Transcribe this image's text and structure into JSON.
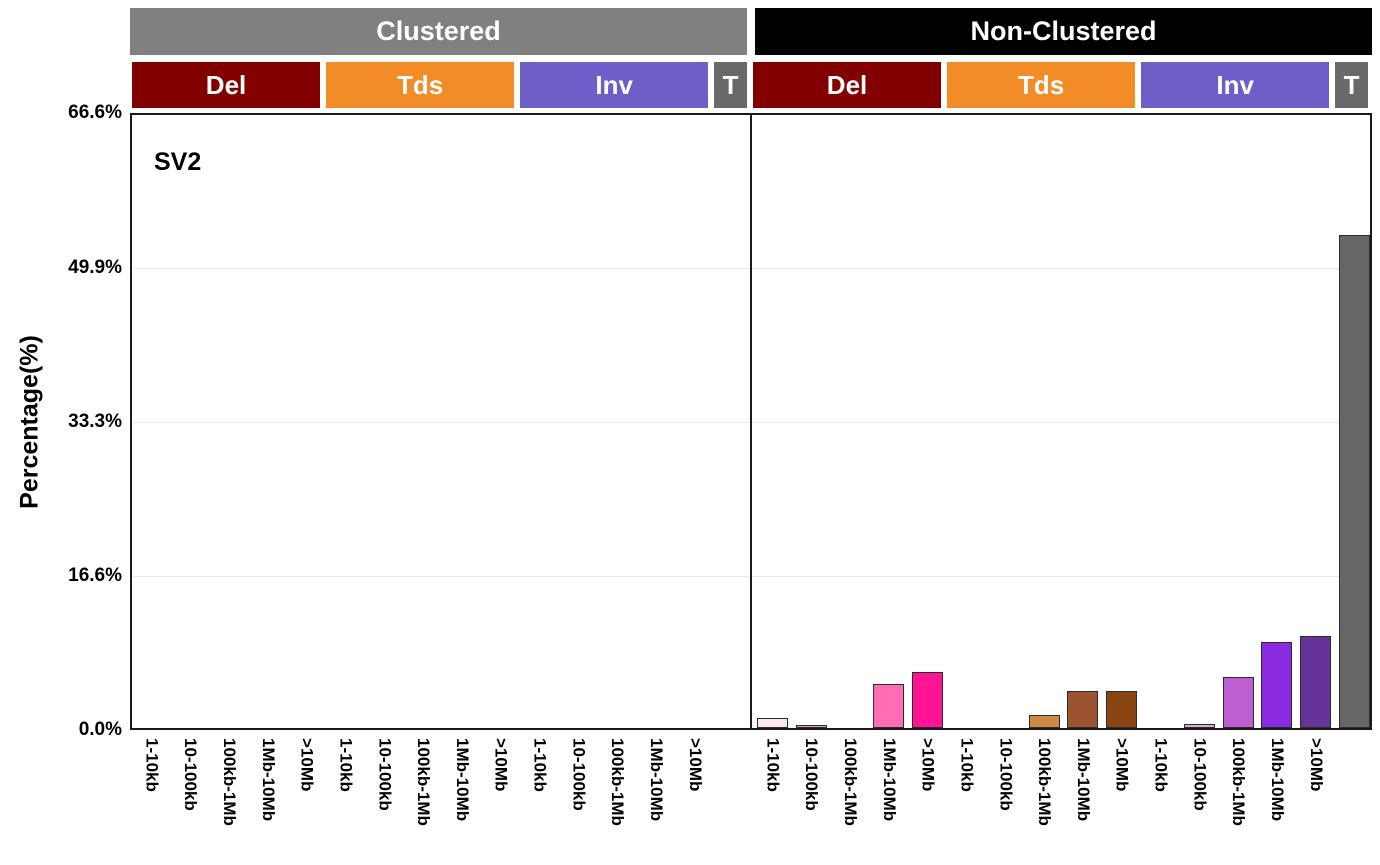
{
  "title": "SV2",
  "header": {
    "groups": [
      {
        "label": "Clustered",
        "bg": "#808080",
        "fg": "#ffffff"
      },
      {
        "label": "Non-Clustered",
        "bg": "#000000",
        "fg": "#ffffff"
      }
    ],
    "categories": [
      {
        "label": "Del",
        "bg": "#820000",
        "fg": "#ffffff",
        "slots": 5
      },
      {
        "label": "Tds",
        "bg": "#F28C26",
        "fg": "#ffffff",
        "slots": 5
      },
      {
        "label": "Inv",
        "bg": "#6E5FC8",
        "fg": "#ffffff",
        "slots": 5
      },
      {
        "label": "T",
        "bg": "#696969",
        "fg": "#ffffff",
        "slots": 1
      }
    ]
  },
  "chart_data": {
    "type": "bar",
    "title": "SV2",
    "ylabel": "Percentage(%)",
    "ylim": [
      0,
      66.6
    ],
    "yticks": [
      {
        "label": "0.0%",
        "value": 0
      },
      {
        "label": "16.6%",
        "value": 16.6
      },
      {
        "label": "33.3%",
        "value": 33.3
      },
      {
        "label": "49.9%",
        "value": 49.9
      },
      {
        "label": "66.6%",
        "value": 66.6
      }
    ],
    "gridlines": [
      16.6,
      33.3,
      49.9
    ],
    "size_bins": [
      "1-10kb",
      "10-100kb",
      "100kb-1Mb",
      "1Mb-10Mb",
      ">10Mb"
    ],
    "bar_colors": {
      "Del": [
        "#FCE9EF",
        "#E79CA9",
        "#FF8CC0",
        "#FF6EB4",
        "#FF1493"
      ],
      "Tds": [
        "#FAD9A6",
        "#EBAA60",
        "#CC8A44",
        "#9D5330",
        "#8B4513"
      ],
      "Inv": [
        "#EBD4EE",
        "#D9A9DE",
        "#BD5FD1",
        "#8A2BE2",
        "#663399"
      ],
      "T": [
        "#666666"
      ]
    },
    "panels": [
      {
        "name": "Clustered",
        "series": [
          {
            "name": "Del",
            "values": [
              0,
              0,
              0,
              0,
              0
            ]
          },
          {
            "name": "Tds",
            "values": [
              0,
              0,
              0,
              0,
              0
            ]
          },
          {
            "name": "Inv",
            "values": [
              0,
              0,
              0,
              0,
              0
            ]
          },
          {
            "name": "T",
            "values": [
              0
            ]
          }
        ]
      },
      {
        "name": "Non-Clustered",
        "series": [
          {
            "name": "Del",
            "values": [
              1.1,
              0.3,
              0,
              4.8,
              6.0
            ]
          },
          {
            "name": "Tds",
            "values": [
              0,
              0,
              1.4,
              4.0,
              4.0
            ]
          },
          {
            "name": "Inv",
            "values": [
              0,
              0.4,
              5.5,
              9.3,
              9.9
            ]
          },
          {
            "name": "T",
            "values": [
              53.2
            ]
          }
        ]
      }
    ]
  }
}
